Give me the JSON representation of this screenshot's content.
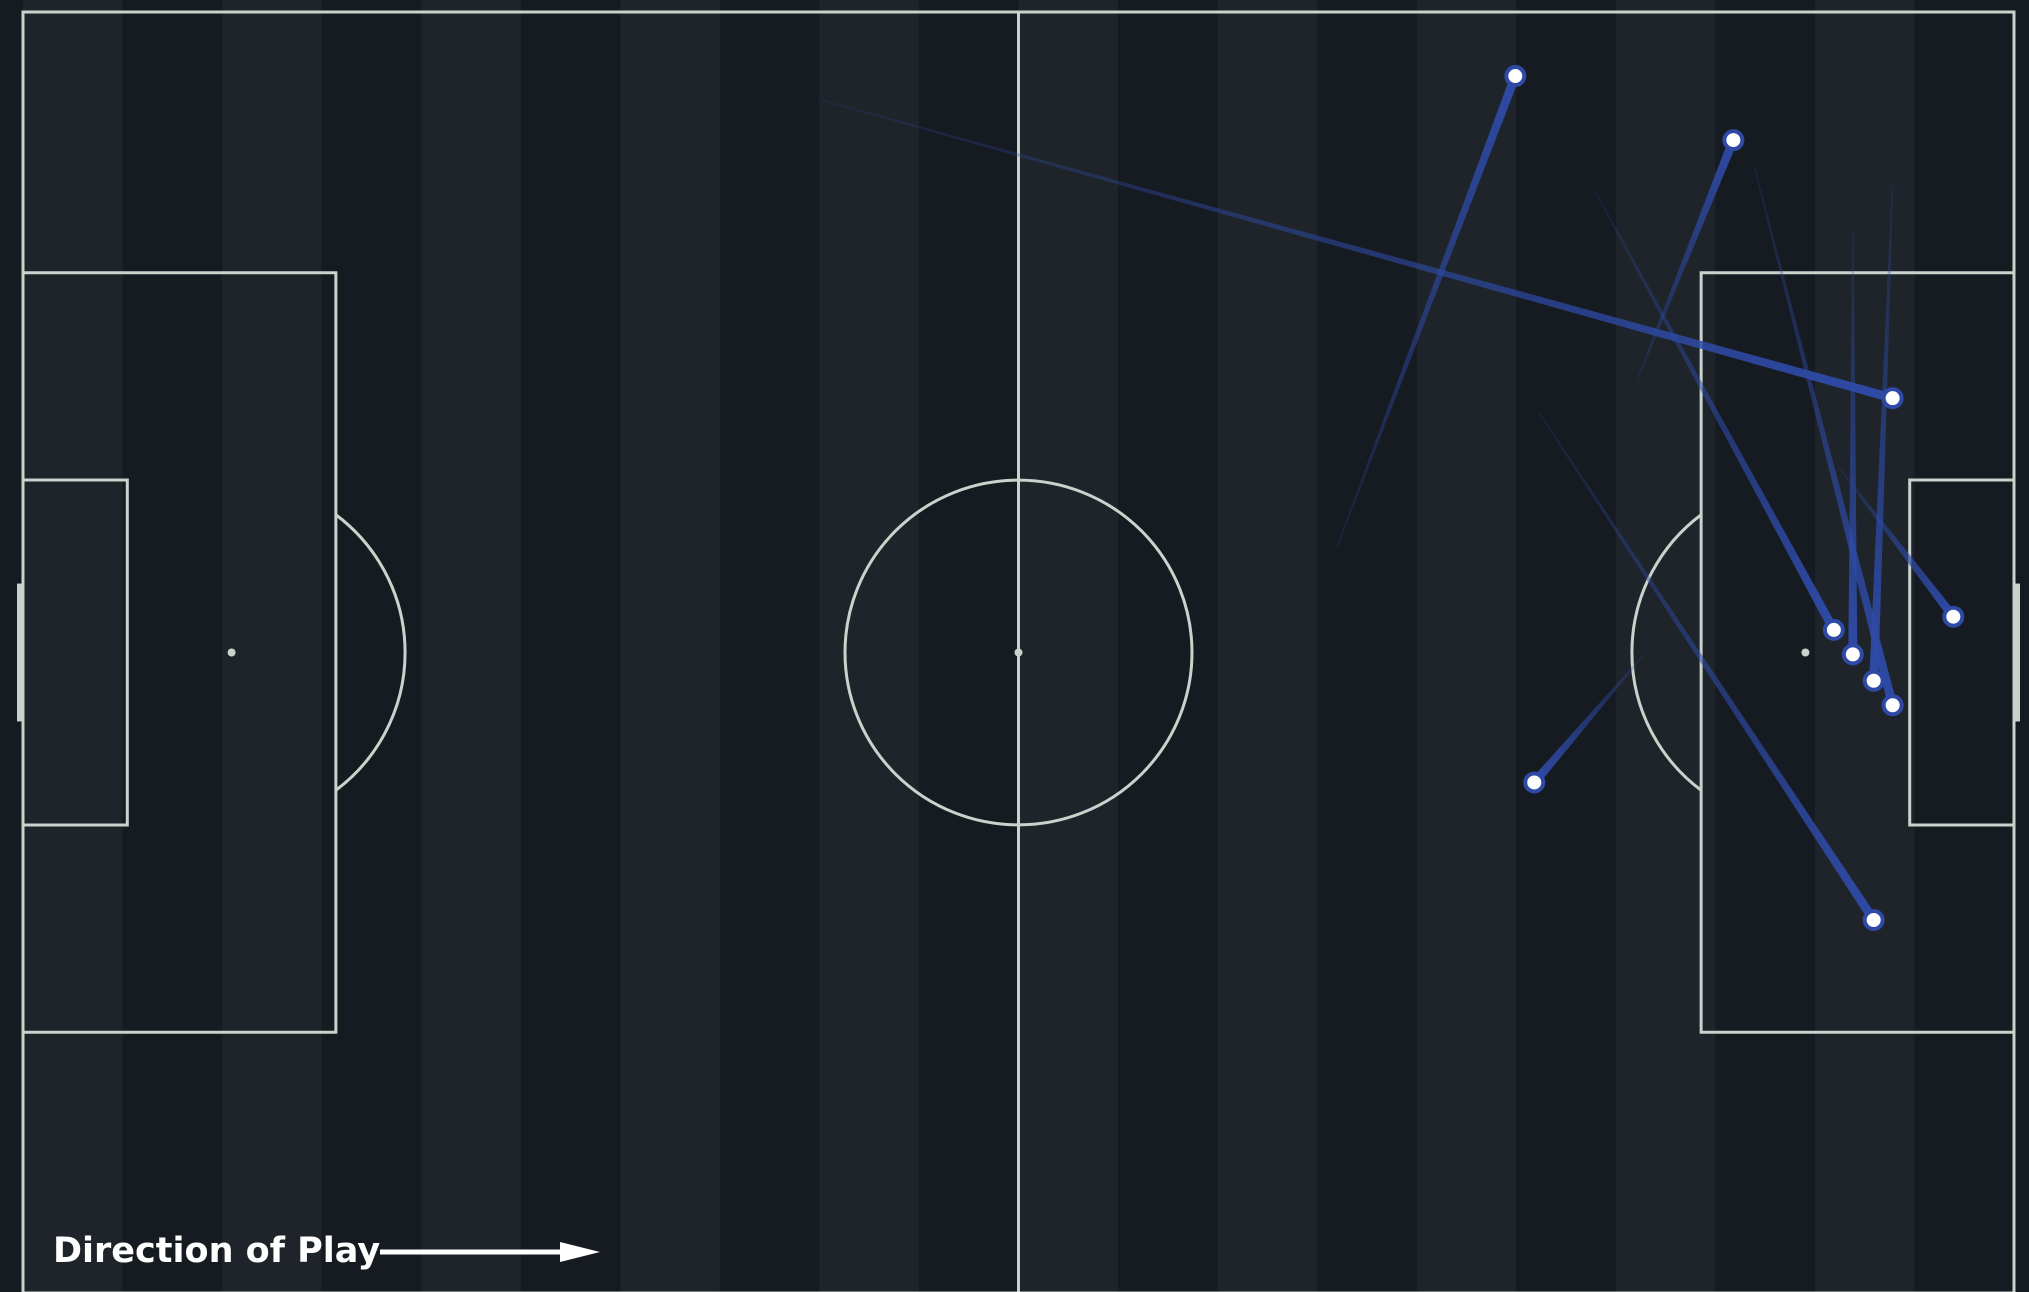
{
  "chart_data": {
    "type": "pass_map",
    "direction_label": "Direction of Play",
    "color": "#2e4aa6",
    "xlim": [
      0,
      105
    ],
    "ylim": [
      0,
      68
    ],
    "passes": [
      {
        "x": 42.2,
        "y": 4.7,
        "end_x": 98.6,
        "end_y": 20.5
      },
      {
        "x": 69.3,
        "y": 28.4,
        "end_x": 78.7,
        "end_y": 3.4
      },
      {
        "x": 85.1,
        "y": 19.6,
        "end_x": 90.2,
        "end_y": 6.8
      },
      {
        "x": 82.9,
        "y": 9.5,
        "end_x": 95.5,
        "end_y": 32.8
      },
      {
        "x": 91.3,
        "y": 8.2,
        "end_x": 98.6,
        "end_y": 36.8
      },
      {
        "x": 96.5,
        "y": 11.6,
        "end_x": 96.5,
        "end_y": 34.1
      },
      {
        "x": 98.6,
        "y": 9.0,
        "end_x": 97.6,
        "end_y": 35.5
      },
      {
        "x": 95.7,
        "y": 24.1,
        "end_x": 101.8,
        "end_y": 32.1
      },
      {
        "x": 85.5,
        "y": 34.1,
        "end_x": 79.7,
        "end_y": 40.9
      },
      {
        "x": 79.9,
        "y": 21.2,
        "end_x": 97.6,
        "end_y": 48.2
      }
    ]
  }
}
